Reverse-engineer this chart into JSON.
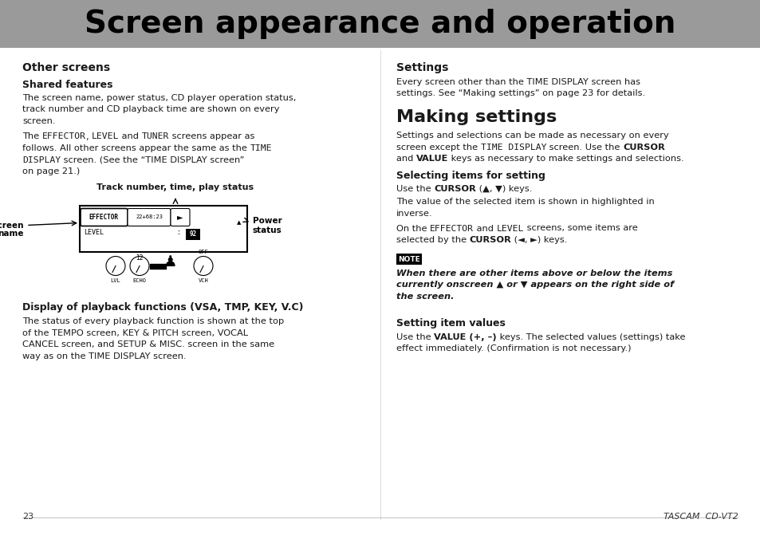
{
  "title": "Screen appearance and operation",
  "title_bg": "#999999",
  "page_bg": "#ffffff",
  "footer_page": "23",
  "footer_brand": "TASCAM  CD-VT2"
}
